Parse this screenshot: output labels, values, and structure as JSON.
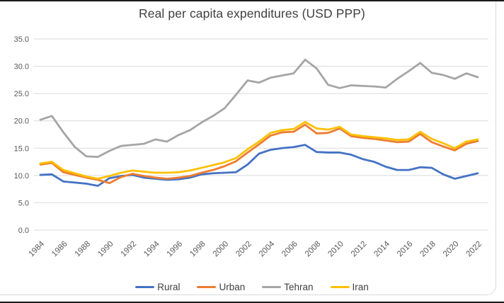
{
  "chart": {
    "title": "Real per capita expenditures (USD PPP)"
  },
  "chart_data": {
    "type": "line",
    "title": "Real per capita expenditures (USD PPP)",
    "xlabel": "",
    "ylabel": "",
    "x": [
      1984,
      1985,
      1986,
      1987,
      1988,
      1989,
      1990,
      1991,
      1992,
      1993,
      1994,
      1995,
      1996,
      1997,
      1998,
      1999,
      2000,
      2001,
      2002,
      2003,
      2004,
      2005,
      2006,
      2007,
      2008,
      2009,
      2010,
      2011,
      2012,
      2013,
      2014,
      2015,
      2016,
      2017,
      2018,
      2019,
      2020,
      2021,
      2022
    ],
    "x_tick_labels": [
      "1984",
      "1986",
      "1988",
      "1990",
      "1992",
      "1994",
      "1996",
      "1998",
      "2000",
      "2002",
      "2004",
      "2006",
      "2008",
      "2010",
      "2012",
      "2014",
      "2016",
      "2018",
      "2020",
      "2022"
    ],
    "y_ticks": [
      0,
      5,
      10,
      15,
      20,
      25,
      30,
      35
    ],
    "y_tick_labels": [
      "0.0",
      "5.0",
      "10.0",
      "15.0",
      "20.0",
      "25.0",
      "30.0",
      "35.0"
    ],
    "ylim": [
      0,
      35
    ],
    "grid": "horizontal",
    "gridline_color": "#D9D9D9",
    "tick_label_color": "#595959",
    "legend_position": "bottom",
    "series": [
      {
        "name": "Rural",
        "color": "#4472C4",
        "values": [
          10.1,
          10.2,
          8.9,
          8.7,
          8.5,
          8.1,
          9.5,
          9.9,
          10.1,
          9.6,
          9.4,
          9.2,
          9.3,
          9.6,
          10.2,
          10.4,
          10.5,
          10.6,
          12.0,
          14.0,
          14.7,
          15.0,
          15.2,
          15.6,
          14.3,
          14.2,
          14.2,
          13.8,
          13.0,
          12.5,
          11.6,
          11.0,
          11.0,
          11.5,
          11.4,
          10.2,
          9.4,
          9.9,
          10.4
        ]
      },
      {
        "name": "Urban",
        "color": "#ED7D31",
        "values": [
          12.0,
          12.3,
          10.6,
          10.1,
          9.6,
          9.2,
          8.6,
          9.7,
          10.3,
          9.9,
          9.6,
          9.4,
          9.6,
          9.9,
          10.5,
          11.0,
          11.7,
          12.6,
          14.2,
          15.7,
          17.3,
          17.9,
          18.0,
          19.3,
          17.7,
          17.8,
          18.6,
          17.2,
          16.9,
          16.7,
          16.4,
          16.1,
          16.2,
          17.6,
          16.1,
          15.3,
          14.6,
          15.8,
          16.3
        ]
      },
      {
        "name": "Tehran",
        "color": "#A5A5A5",
        "values": [
          20.2,
          20.9,
          17.9,
          15.2,
          13.5,
          13.4,
          14.5,
          15.4,
          15.6,
          15.8,
          16.6,
          16.2,
          17.4,
          18.3,
          19.7,
          20.9,
          22.3,
          24.8,
          27.4,
          27.0,
          27.9,
          28.3,
          28.7,
          31.2,
          29.6,
          26.6,
          26.0,
          26.5,
          26.4,
          26.3,
          26.1,
          27.7,
          29.1,
          30.6,
          28.8,
          28.4,
          27.7,
          28.7,
          28.0
        ]
      },
      {
        "name": "Iran",
        "color": "#FFC000",
        "values": [
          12.2,
          12.5,
          11.0,
          10.4,
          9.8,
          9.4,
          9.9,
          10.5,
          10.9,
          10.7,
          10.5,
          10.5,
          10.6,
          10.9,
          11.4,
          11.9,
          12.4,
          13.2,
          14.8,
          16.2,
          17.8,
          18.3,
          18.5,
          19.8,
          18.6,
          18.4,
          18.9,
          17.5,
          17.2,
          17.0,
          16.8,
          16.5,
          16.6,
          18.0,
          16.7,
          15.9,
          15.0,
          16.2,
          16.6
        ]
      }
    ]
  }
}
